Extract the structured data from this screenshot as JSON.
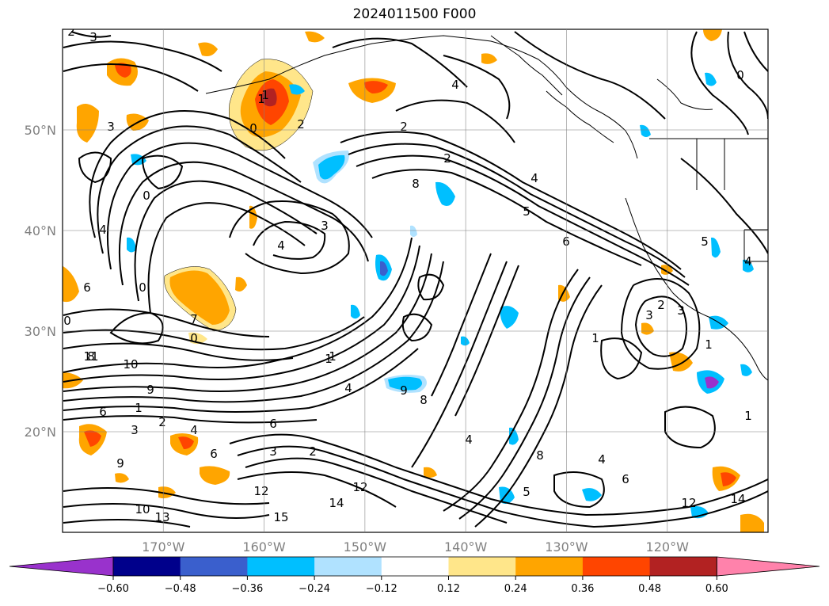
{
  "title": "2024011500 F000",
  "map": {
    "lon_range": [
      -180,
      -110
    ],
    "lat_range": [
      10,
      60
    ],
    "gridline_lons": [
      -170,
      -160,
      -150,
      -140,
      -130,
      -120
    ],
    "gridline_lats": [
      20,
      30,
      40,
      50
    ],
    "lon_labels": [
      "170°W",
      "160°W",
      "150°W",
      "140°W",
      "130°W",
      "120°W"
    ],
    "lat_labels": [
      "20°N",
      "30°N",
      "40°N",
      "50°N"
    ],
    "contour_labels": [
      "2",
      "3",
      "1",
      "2",
      "4",
      "1",
      "0",
      "3",
      "0",
      "2",
      "2",
      "4",
      "8",
      "5",
      "6",
      "4",
      "0",
      "3",
      "4",
      "6",
      "0",
      "7",
      "8",
      "1",
      "0",
      "1",
      "11",
      "10",
      "9",
      "4",
      "9",
      "8",
      "6",
      "1",
      "3",
      "2",
      "4",
      "6",
      "3",
      "2",
      "9",
      "10",
      "13",
      "12",
      "15",
      "14",
      "12",
      "4",
      "5",
      "8",
      "4",
      "6",
      "1",
      "3",
      "1",
      "3",
      "2",
      "1",
      "5",
      "4",
      "0",
      "12",
      "14",
      "6"
    ]
  },
  "colorbar": {
    "tick_labels": [
      "-0.60",
      "-0.48",
      "-0.36",
      "-0.24",
      "-0.12",
      "0.12",
      "0.24",
      "0.36",
      "0.48",
      "0.60"
    ],
    "colors": [
      "#9932cc",
      "#00008b",
      "#3a5fcd",
      "#00bfff",
      "#b0e2ff",
      "#ffffff",
      "#ffe68a",
      "#ffa500",
      "#ff4500",
      "#b22222",
      "#ff82ab"
    ]
  },
  "anomaly_colors": {
    "orange": "#ffa500",
    "light_yellow": "#ffe68a",
    "red": "#ff4500",
    "dark_red": "#b22222",
    "light_blue": "#b0e2ff",
    "blue": "#00bfff",
    "medium_blue": "#3a5fcd",
    "purple": "#9932cc"
  }
}
